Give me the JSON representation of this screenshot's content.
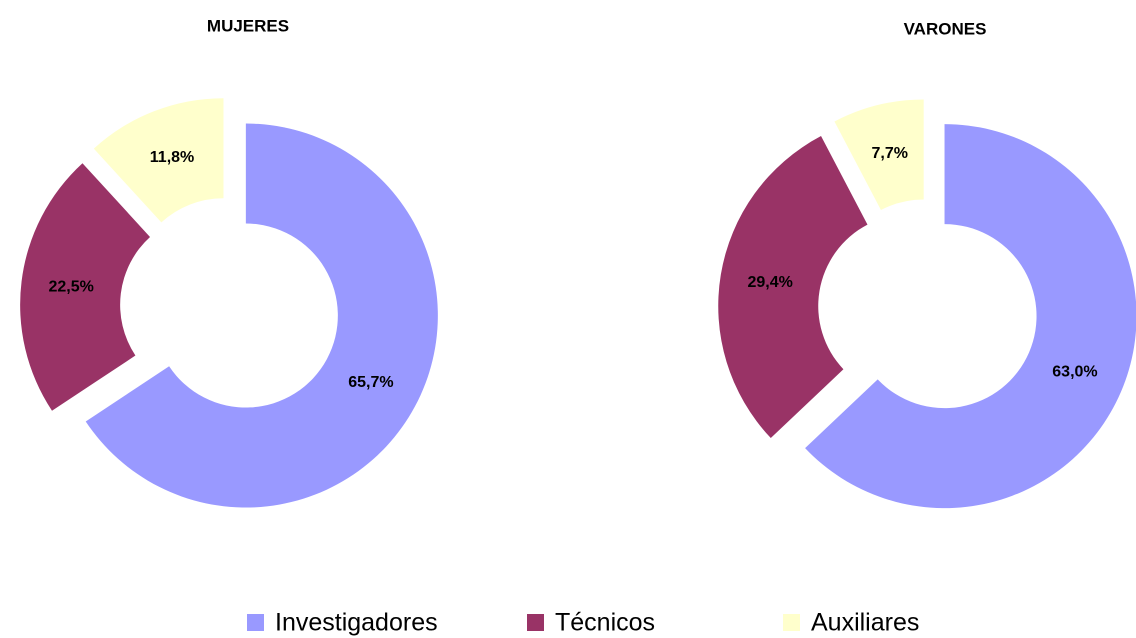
{
  "chart_data": [
    {
      "type": "donut",
      "title": "MUJERES",
      "categories": [
        "Investigadores",
        "Técnicos",
        "Auxiliares"
      ],
      "values": [
        65.7,
        22.5,
        11.8
      ],
      "value_labels": [
        "65,7%",
        "22,5%",
        "11,8%"
      ],
      "colors": [
        "#9999ff",
        "#993366",
        "#ffffcc"
      ]
    },
    {
      "type": "donut",
      "title": "VARONES",
      "categories": [
        "Investigadores",
        "Técnicos",
        "Auxiliares"
      ],
      "values": [
        63.0,
        29.4,
        7.7
      ],
      "value_labels": [
        "63,0%",
        "29,4%",
        "7,7%"
      ],
      "colors": [
        "#9999ff",
        "#993366",
        "#ffffcc"
      ]
    }
  ]
}
